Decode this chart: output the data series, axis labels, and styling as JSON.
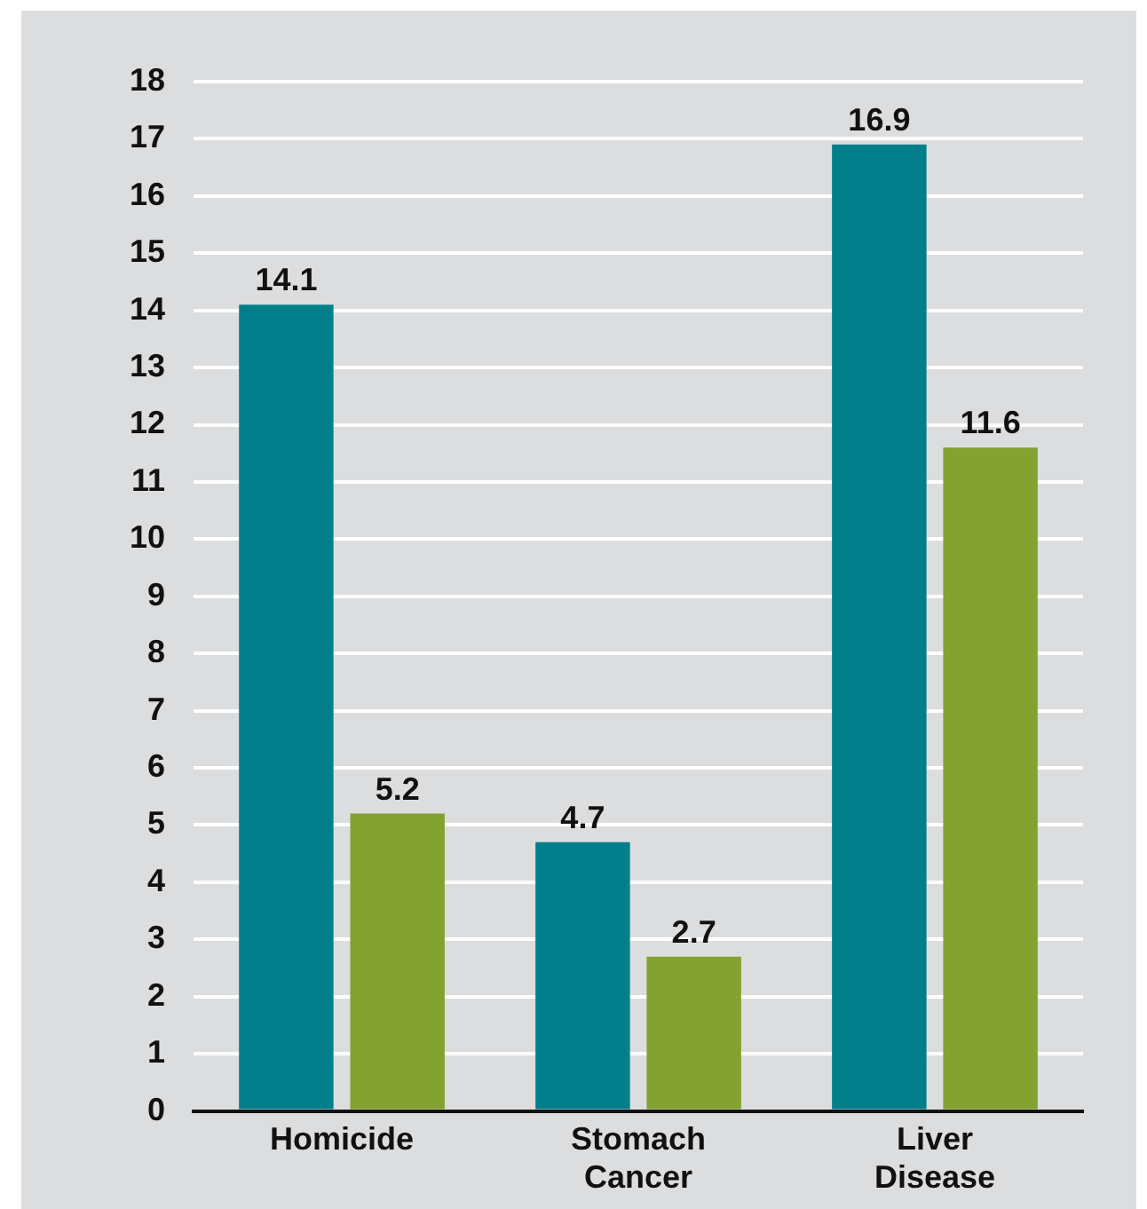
{
  "chart_data": {
    "type": "bar",
    "categories": [
      "Homicide",
      "Stomach Cancer",
      "Liver Disease"
    ],
    "series": [
      {
        "color": "#007f8b",
        "values": [
          14.1,
          4.7,
          16.9
        ]
      },
      {
        "color": "#84a22f",
        "values": [
          5.2,
          2.7,
          11.6
        ]
      }
    ],
    "ylim": [
      0,
      18
    ],
    "yticks": [
      0,
      1,
      2,
      3,
      4,
      5,
      6,
      7,
      8,
      9,
      10,
      11,
      12,
      13,
      14,
      15,
      16,
      17,
      18
    ],
    "grid": "y",
    "data_labels": true
  }
}
